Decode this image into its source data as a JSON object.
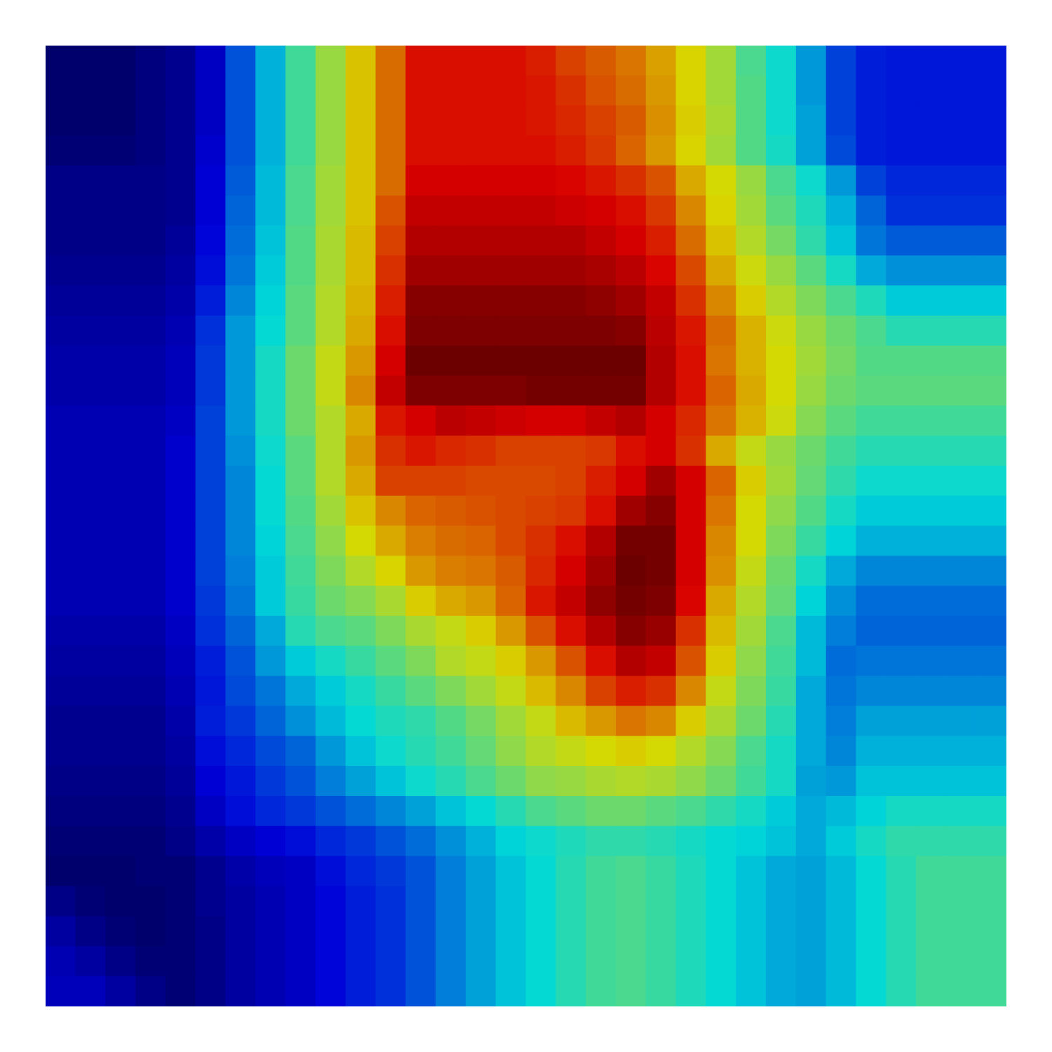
{
  "chart_data": {
    "type": "heatmap",
    "tick_labels": false,
    "color_range": [
      0,
      100
    ],
    "cells": [
      [
        0,
        0,
        0,
        2,
        4,
        10,
        22,
        33,
        45,
        55,
        65,
        75,
        86,
        86,
        86,
        86,
        84,
        80,
        77,
        74,
        69,
        63,
        56,
        46,
        39,
        30,
        20,
        16,
        15,
        15,
        15,
        15
      ],
      [
        0,
        0,
        0,
        2,
        4,
        10,
        22,
        33,
        45,
        55,
        65,
        75,
        86,
        86,
        86,
        86,
        85,
        82,
        78,
        75,
        70,
        63,
        56,
        47,
        39,
        30,
        20,
        16,
        15,
        15,
        15,
        15
      ],
      [
        0,
        0,
        0,
        2,
        4,
        10,
        22,
        33,
        45,
        55,
        65,
        75,
        86,
        86,
        86,
        86,
        85,
        83,
        80,
        77,
        71,
        64,
        57,
        47,
        39,
        31,
        20,
        16,
        15,
        15,
        15,
        15
      ],
      [
        1,
        1,
        1,
        2,
        4,
        11,
        22,
        33,
        45,
        55,
        65,
        75,
        86,
        86,
        86,
        86,
        86,
        84,
        81,
        76,
        70,
        63,
        56,
        47,
        40,
        31,
        21,
        16,
        15,
        15,
        15,
        15
      ],
      [
        3,
        3,
        3,
        3,
        4,
        12,
        23,
        34,
        46,
        56,
        65,
        75,
        88,
        88,
        88,
        88,
        88,
        87,
        85,
        82,
        78,
        68,
        62,
        55,
        46,
        39,
        30,
        20,
        17,
        17,
        17,
        17
      ],
      [
        3,
        3,
        3,
        3,
        4,
        12,
        24,
        34,
        46,
        56,
        65,
        78,
        90,
        90,
        90,
        90,
        90,
        89,
        88,
        86,
        81,
        72,
        63,
        56,
        48,
        41,
        33,
        24,
        18,
        18,
        18,
        18
      ],
      [
        3,
        3,
        3,
        3,
        5,
        13,
        25,
        35,
        47,
        57,
        66,
        80,
        92,
        92,
        92,
        92,
        92,
        92,
        90,
        88,
        84,
        75,
        65,
        58,
        51,
        43,
        35,
        26,
        23,
        23,
        23,
        23
      ],
      [
        4,
        4,
        4,
        4,
        6,
        14,
        26,
        36,
        47,
        57,
        66,
        82,
        94,
        94,
        94,
        94,
        94,
        94,
        93,
        91,
        87,
        79,
        68,
        61,
        55,
        48,
        40,
        32,
        29,
        29,
        29,
        29
      ],
      [
        5,
        5,
        5,
        5,
        7,
        16,
        28,
        37,
        48,
        58,
        67,
        84,
        97,
        97,
        97,
        97,
        97,
        97,
        96,
        94,
        90,
        82,
        72,
        64,
        58,
        52,
        46,
        41,
        36,
        36,
        36,
        36
      ],
      [
        6,
        6,
        6,
        6,
        8,
        18,
        30,
        38,
        48,
        58,
        68,
        86,
        98,
        98,
        98,
        98,
        98,
        98,
        98,
        97,
        91,
        85,
        75,
        67,
        61,
        55,
        50,
        46,
        42,
        42,
        42,
        42
      ],
      [
        7,
        7,
        7,
        7,
        9,
        19,
        30,
        40,
        50,
        60,
        70,
        88,
        100,
        100,
        100,
        100,
        100,
        100,
        100,
        100,
        92,
        86,
        74,
        67,
        62,
        56,
        51,
        47,
        47,
        47,
        47,
        47
      ],
      [
        7,
        7,
        7,
        7,
        9,
        19,
        30,
        40,
        50,
        60,
        72,
        90,
        98,
        98,
        98,
        98,
        99,
        99,
        99,
        99,
        92,
        86,
        76,
        68,
        62,
        55,
        50,
        48,
        48,
        48,
        48,
        48
      ],
      [
        8,
        8,
        8,
        8,
        10,
        20,
        30,
        40,
        50,
        58,
        68,
        85,
        88,
        91,
        90,
        89,
        88,
        88,
        90,
        92,
        88,
        83,
        74,
        67,
        61,
        53,
        48,
        45,
        45,
        45,
        45,
        45
      ],
      [
        8,
        8,
        8,
        8,
        11,
        20,
        29,
        39,
        48,
        58,
        70,
        82,
        85,
        83,
        82,
        80,
        80,
        80,
        81,
        86,
        88,
        82,
        68,
        60,
        55,
        50,
        45,
        42,
        42,
        42,
        42,
        42
      ],
      [
        8,
        8,
        8,
        8,
        11,
        20,
        28,
        38,
        48,
        58,
        68,
        80,
        80,
        80,
        79,
        79,
        79,
        80,
        84,
        88,
        94,
        88,
        76,
        64,
        56,
        49,
        43,
        39,
        39,
        39,
        39,
        39
      ],
      [
        8,
        8,
        8,
        8,
        11,
        20,
        28,
        38,
        47,
        56,
        65,
        72,
        76,
        77,
        78,
        79,
        80,
        81,
        86,
        94,
        97,
        88,
        74,
        62,
        54,
        47,
        40,
        36,
        36,
        36,
        36,
        36
      ],
      [
        8,
        8,
        8,
        8,
        11,
        20,
        28,
        37,
        46,
        54,
        62,
        68,
        73,
        75,
        76,
        79,
        82,
        86,
        92,
        99,
        99,
        88,
        72,
        62,
        52,
        44,
        37,
        33,
        33,
        33,
        33,
        33
      ],
      [
        8,
        8,
        8,
        8,
        11,
        20,
        27,
        36,
        45,
        52,
        58,
        63,
        70,
        73,
        74,
        77,
        83,
        88,
        94,
        100,
        99,
        88,
        71,
        60,
        50,
        40,
        32,
        28,
        28,
        28,
        28,
        28
      ],
      [
        8,
        8,
        8,
        8,
        11,
        19,
        26,
        36,
        44,
        50,
        53,
        57,
        64,
        68,
        70,
        76,
        85,
        90,
        96,
        99,
        98,
        87,
        68,
        58,
        49,
        37,
        29,
        25,
        25,
        25,
        25,
        25
      ],
      [
        7,
        7,
        7,
        7,
        10,
        18,
        24,
        32,
        42,
        46,
        48,
        52,
        57,
        60,
        64,
        70,
        78,
        86,
        92,
        97,
        95,
        82,
        66,
        56,
        46,
        34,
        27,
        24,
        24,
        24,
        24,
        24
      ],
      [
        6,
        6,
        6,
        6,
        9,
        16,
        22,
        30,
        36,
        40,
        44,
        48,
        52,
        58,
        60,
        64,
        70,
        78,
        86,
        92,
        90,
        78,
        64,
        54,
        45,
        34,
        25,
        26,
        26,
        26,
        26,
        26
      ],
      [
        5,
        5,
        5,
        5,
        8,
        15,
        21,
        26,
        32,
        36,
        40,
        44,
        48,
        52,
        56,
        60,
        66,
        72,
        80,
        84,
        82,
        72,
        60,
        52,
        44,
        32,
        26,
        28,
        28,
        28,
        28,
        28
      ],
      [
        4,
        4,
        4,
        4,
        7,
        16,
        19,
        24,
        29,
        34,
        38,
        41,
        43,
        47,
        51,
        56,
        60,
        66,
        70,
        74,
        72,
        64,
        57,
        50,
        42,
        32,
        27,
        31,
        31,
        31,
        31,
        31
      ],
      [
        4,
        4,
        4,
        4,
        6,
        14,
        17,
        21,
        24,
        30,
        35,
        39,
        42,
        45,
        49,
        54,
        58,
        60,
        62,
        64,
        62,
        58,
        53,
        46,
        40,
        32,
        28,
        33,
        33,
        33,
        33,
        33
      ],
      [
        3,
        3,
        3,
        3,
        5,
        12,
        15,
        19,
        22,
        27,
        31,
        35,
        39,
        42,
        46,
        50,
        54,
        55,
        57,
        58,
        57,
        54,
        50,
        45,
        40,
        31,
        30,
        35,
        35,
        35,
        35,
        35
      ],
      [
        2,
        2,
        2,
        2,
        4,
        10,
        14,
        17,
        19,
        22,
        25,
        28,
        31,
        35,
        38,
        42,
        46,
        48,
        50,
        50,
        48,
        46,
        43,
        40,
        36,
        32,
        34,
        37,
        40,
        40,
        40,
        40
      ],
      [
        1,
        1,
        1,
        1,
        3,
        7,
        10,
        12,
        14,
        17,
        19,
        22,
        25,
        29,
        33,
        37,
        39,
        41,
        43,
        43,
        42,
        40,
        38,
        37,
        35,
        32,
        36,
        40,
        43,
        43,
        43,
        43
      ],
      [
        0,
        0,
        0,
        1,
        1,
        4,
        7,
        9,
        10,
        14,
        17,
        19,
        22,
        27,
        31,
        35,
        38,
        42,
        45,
        46,
        44,
        41,
        38,
        35,
        32,
        31,
        34,
        38,
        42,
        45,
        45,
        45
      ],
      [
        3,
        1,
        0,
        0,
        1,
        4,
        6,
        8,
        10,
        13,
        16,
        18,
        22,
        27,
        31,
        35,
        38,
        42,
        45,
        46,
        44,
        41,
        38,
        35,
        32,
        31,
        34,
        38,
        42,
        45,
        45,
        45
      ],
      [
        6,
        3,
        1,
        0,
        1,
        3,
        6,
        8,
        10,
        13,
        16,
        18,
        22,
        27,
        31,
        35,
        38,
        42,
        45,
        46,
        44,
        41,
        38,
        35,
        32,
        31,
        34,
        38,
        42,
        45,
        45,
        45
      ],
      [
        8,
        6,
        3,
        1,
        1,
        3,
        6,
        8,
        10,
        13,
        16,
        18,
        22,
        27,
        31,
        35,
        38,
        42,
        45,
        46,
        44,
        41,
        38,
        35,
        32,
        31,
        34,
        38,
        42,
        45,
        45,
        45
      ],
      [
        9,
        9,
        6,
        3,
        1,
        3,
        6,
        8,
        10,
        13,
        16,
        18,
        22,
        27,
        31,
        35,
        38,
        42,
        45,
        46,
        44,
        41,
        38,
        35,
        32,
        31,
        34,
        38,
        42,
        45,
        45,
        45
      ]
    ]
  }
}
